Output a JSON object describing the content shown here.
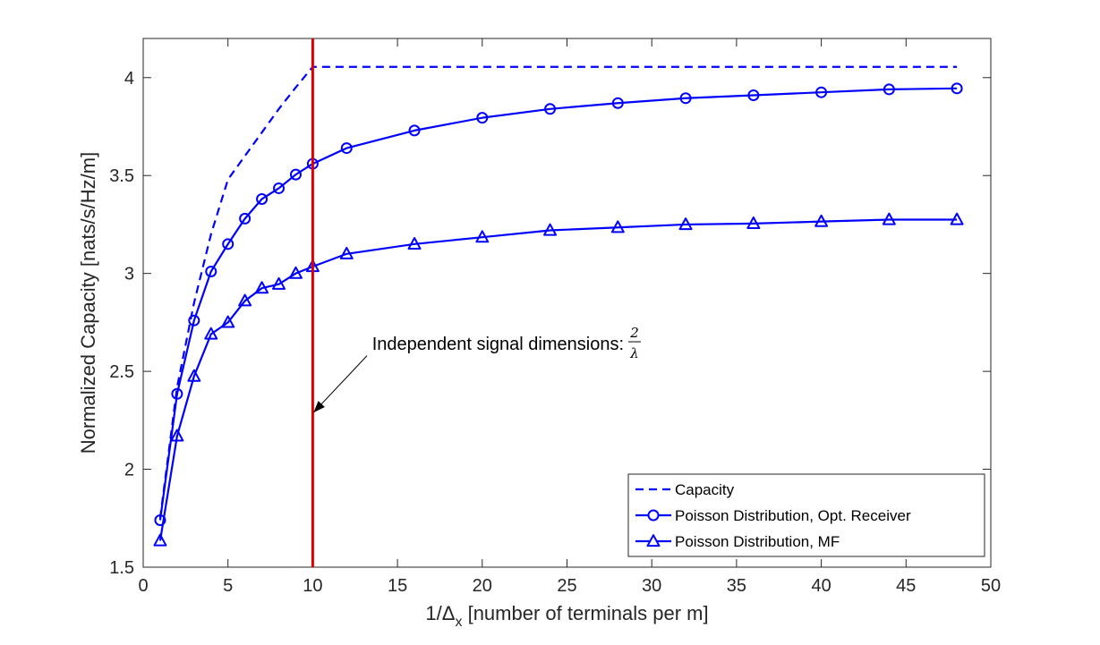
{
  "chart_data": {
    "type": "line",
    "xlabel": "1/Δ",
    "xlabel_sub": "x",
    "xlabel_rest": " [number of terminals per m]",
    "ylabel": "Normalized Capacity [nats/s/Hz/m]",
    "xlim": [
      0,
      50
    ],
    "ylim": [
      1.5,
      4.2
    ],
    "xticks": [
      0,
      5,
      10,
      15,
      20,
      25,
      30,
      35,
      40,
      45,
      50
    ],
    "yticks": [
      1.5,
      2,
      2.5,
      3,
      3.5,
      4
    ],
    "xtick_labels": [
      "0",
      "5",
      "10",
      "15",
      "20",
      "25",
      "30",
      "35",
      "40",
      "45",
      "50"
    ],
    "ytick_labels": [
      "1.5",
      "2",
      "2.5",
      "3",
      "3.5",
      "4"
    ],
    "series": [
      {
        "name": "Capacity",
        "style": "dashed",
        "marker": "none",
        "x": [
          1,
          2,
          3,
          4,
          5,
          6,
          7,
          8,
          9,
          10,
          48
        ],
        "y": [
          1.75,
          2.42,
          2.85,
          3.2,
          3.48,
          3.6,
          3.72,
          3.84,
          3.95,
          4.055,
          4.055
        ]
      },
      {
        "name": "Poisson Distribution, Opt. Receiver",
        "style": "solid",
        "marker": "circle",
        "x": [
          1,
          2,
          3,
          4,
          5,
          6,
          7,
          8,
          9,
          10,
          12,
          16,
          20,
          24,
          28,
          32,
          36,
          40,
          44,
          48
        ],
        "y": [
          1.74,
          2.385,
          2.76,
          3.01,
          3.15,
          3.28,
          3.38,
          3.435,
          3.505,
          3.56,
          3.64,
          3.73,
          3.795,
          3.84,
          3.87,
          3.895,
          3.91,
          3.925,
          3.94,
          3.945
        ]
      },
      {
        "name": "Poisson Distribution, MF",
        "style": "solid",
        "marker": "triangle",
        "x": [
          1,
          2,
          3,
          4,
          5,
          6,
          7,
          8,
          9,
          10,
          12,
          16,
          20,
          24,
          28,
          32,
          36,
          40,
          44,
          48
        ],
        "y": [
          1.635,
          2.17,
          2.475,
          2.69,
          2.75,
          2.86,
          2.925,
          2.945,
          3.0,
          3.035,
          3.1,
          3.15,
          3.185,
          3.22,
          3.235,
          3.25,
          3.255,
          3.265,
          3.275,
          3.275
        ]
      }
    ],
    "vline": {
      "x": 10,
      "color": "#e00000"
    },
    "series_color": "#0000ff",
    "annotation": {
      "text": "Independent signal dimensions: ",
      "frac_num": "2",
      "frac_den": "λ",
      "text_x": 13.5,
      "text_y": 2.61,
      "arrow_from": [
        13.2,
        2.58
      ],
      "arrow_to": [
        10.05,
        2.29
      ]
    },
    "legend_position": "bottom-right",
    "grid": false
  }
}
